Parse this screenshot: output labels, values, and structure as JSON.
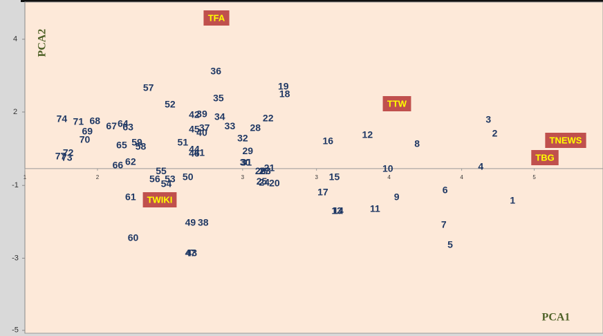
{
  "chart_data": {
    "type": "scatter",
    "x_label": "PCA1",
    "y_label": "PCA2",
    "color": "#1f3864",
    "xlim": [
      1,
      5.54
    ],
    "ylim": [
      -5.09,
      5.17
    ],
    "xticks": [
      1,
      {
        "value": 1.57,
        "label": "2"
      },
      {
        "value": 2.71,
        "label": "3"
      },
      {
        "value": 3.29,
        "label": "3"
      },
      {
        "value": 3.86,
        "label": "4"
      },
      {
        "value": 4.43,
        "label": "4"
      },
      5
    ],
    "yticks": [
      4,
      {
        "value": 1.75,
        "label": "2"
      },
      {
        "value": -0.52,
        "label": "-1"
      },
      {
        "value": -2.77,
        "label": "-3"
      },
      -5
    ],
    "point_labels": [
      "74",
      "71",
      "68",
      "69",
      "70",
      "67",
      "64",
      "63",
      "65",
      "59",
      "58",
      "72",
      "77",
      "73",
      "66",
      "62",
      "57",
      "52",
      "55",
      "56",
      "53",
      "54",
      "50",
      "61",
      "60",
      "42",
      "39",
      "45",
      "37",
      "40",
      "51",
      "44",
      "46",
      "41",
      "36",
      "35",
      "34",
      "33",
      "32",
      "29",
      "30",
      "31",
      "28",
      "22",
      "19",
      "18",
      "21",
      "26",
      "27",
      "23",
      "25",
      "24",
      "20",
      "49",
      "38",
      "47",
      "43",
      "16",
      "12",
      "15",
      "17",
      "13",
      "14",
      "11",
      "9",
      "10",
      "8",
      "6",
      "7",
      "5",
      "4",
      "3",
      "2",
      "1"
    ],
    "x": [
      1.29,
      1.42,
      1.55,
      1.49,
      1.47,
      1.68,
      1.77,
      1.81,
      1.76,
      1.88,
      1.91,
      1.34,
      1.28,
      1.33,
      1.73,
      1.83,
      1.97,
      2.14,
      2.07,
      2.02,
      2.14,
      2.11,
      2.28,
      1.83,
      1.85,
      2.33,
      2.39,
      2.33,
      2.41,
      2.39,
      2.24,
      2.33,
      2.33,
      2.37,
      2.5,
      2.52,
      2.53,
      2.61,
      2.71,
      2.75,
      2.73,
      2.74,
      2.81,
      2.91,
      3.03,
      3.04,
      2.92,
      2.85,
      2.88,
      2.89,
      2.86,
      2.88,
      2.96,
      2.3,
      2.4,
      2.3,
      2.31,
      3.38,
      3.69,
      3.43,
      3.34,
      3.45,
      3.46,
      3.75,
      3.92,
      3.85,
      4.08,
      4.3,
      4.29,
      4.34,
      4.58,
      4.64,
      4.69,
      4.83
    ],
    "values": [
      1.52,
      1.43,
      1.45,
      1.13,
      0.88,
      1.3,
      1.37,
      1.26,
      0.71,
      0.79,
      0.66,
      0.47,
      0.36,
      0.32,
      0.09,
      0.19,
      2.48,
      1.97,
      -0.09,
      -0.34,
      -0.34,
      -0.49,
      -0.28,
      -0.9,
      -2.16,
      1.65,
      1.67,
      1.2,
      1.24,
      1.09,
      0.79,
      0.58,
      0.45,
      0.47,
      2.99,
      2.16,
      1.58,
      1.3,
      0.92,
      0.53,
      0.17,
      0.17,
      1.24,
      1.54,
      2.52,
      2.29,
      0.0,
      -0.09,
      -0.09,
      -0.09,
      -0.41,
      -0.45,
      -0.47,
      -1.69,
      -1.69,
      -2.63,
      -2.63,
      0.83,
      1.03,
      -0.28,
      -0.75,
      -1.32,
      -1.32,
      -1.26,
      -0.9,
      -0.02,
      0.75,
      -0.68,
      -1.75,
      -2.37,
      0.04,
      1.5,
      1.07,
      -1.0
    ],
    "annotations": [
      "TFA",
      "TTW",
      "TNEWS",
      "TBG",
      "TWIKI"
    ]
  }
}
